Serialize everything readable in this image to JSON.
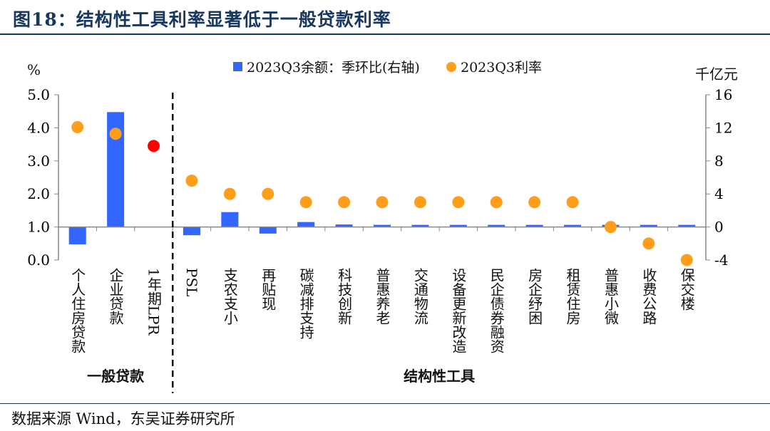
{
  "title": "图18：结构性工具利率显著低于一般贷款利率",
  "source": "数据来源 Wind，东吴证券研究所",
  "chart_data": {
    "type": "bar+scatter",
    "categories": [
      "个人住房贷款",
      "企业贷款",
      "1年期LPR",
      "PSL",
      "支农支小",
      "再贴现",
      "碳减排支持",
      "科技创新",
      "普惠养老",
      "交通物流",
      "设备更新改造",
      "民企债券融资",
      "房企纾困",
      "租赁住房",
      "普惠小微",
      "收费公路",
      "保交楼"
    ],
    "groups": [
      {
        "label": "一般贷款",
        "count": 3
      },
      {
        "label": "结构性工具",
        "count": 14
      }
    ],
    "series": [
      {
        "name": "2023Q3余额：季环比(右轴)",
        "type": "bar",
        "axis": "right",
        "color": "#3366ff",
        "values": [
          -2.1,
          13.9,
          null,
          -1.0,
          1.8,
          -0.8,
          0.6,
          0.3,
          0.1,
          0.1,
          0.05,
          0,
          0,
          0,
          0.1,
          0.15,
          0.15
        ]
      },
      {
        "name": "2023Q3利率",
        "type": "scatter",
        "axis": "left",
        "color": "#ff9e1b",
        "highlight_color": "#ff0000",
        "highlight_index": 2,
        "values": [
          4.02,
          3.82,
          3.45,
          2.4,
          2.0,
          2.0,
          1.75,
          1.75,
          1.75,
          1.75,
          1.75,
          1.75,
          1.75,
          1.75,
          1.0,
          0.5,
          0.0
        ]
      }
    ],
    "left_axis": {
      "unit": "%",
      "ylim": [
        0,
        5
      ],
      "ticks": [
        "0.0",
        "1.0",
        "2.0",
        "3.0",
        "4.0",
        "5.0"
      ]
    },
    "right_axis": {
      "unit": "千亿元",
      "ylim": [
        -4,
        16
      ],
      "ticks": [
        "-4",
        "0",
        "4",
        "8",
        "12",
        "16"
      ]
    },
    "legend_position": "top",
    "grid": false
  }
}
